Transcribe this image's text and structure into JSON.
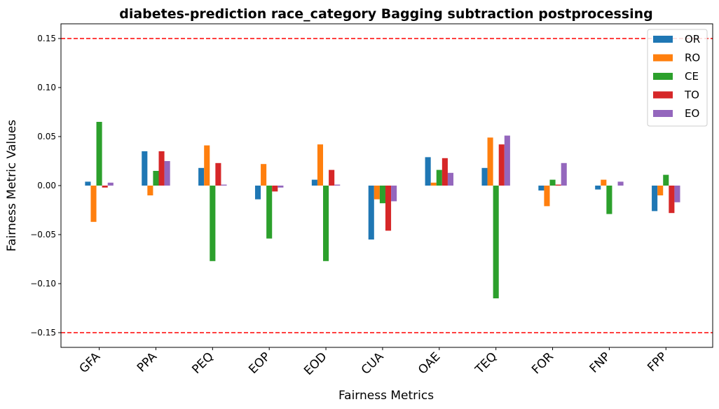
{
  "chart_data": {
    "type": "bar",
    "title": "diabetes-prediction race_category Bagging subtraction postprocessing",
    "xlabel": "Fairness Metrics",
    "ylabel": "Fairness Metric Values",
    "categories": [
      "GFA",
      "PPA",
      "PEQ",
      "EOP",
      "EOD",
      "CUA",
      "OAE",
      "TEQ",
      "FOR",
      "FNP",
      "FPP"
    ],
    "series": [
      {
        "name": "OR",
        "color": "#1f77b4",
        "values": [
          0.004,
          0.035,
          0.018,
          -0.014,
          0.006,
          -0.055,
          0.029,
          0.018,
          -0.005,
          -0.004,
          -0.026
        ]
      },
      {
        "name": "RO",
        "color": "#ff7f0e",
        "values": [
          -0.037,
          -0.01,
          0.041,
          0.022,
          0.042,
          -0.014,
          0.003,
          0.049,
          -0.021,
          0.006,
          -0.01
        ]
      },
      {
        "name": "CE",
        "color": "#2ca02c",
        "values": [
          0.065,
          0.015,
          -0.077,
          -0.054,
          -0.077,
          -0.018,
          0.016,
          -0.115,
          0.006,
          -0.029,
          0.011
        ]
      },
      {
        "name": "TO",
        "color": "#d62728",
        "values": [
          -0.002,
          0.035,
          0.023,
          -0.006,
          0.016,
          -0.046,
          0.028,
          0.042,
          0.001,
          0.0,
          -0.028
        ]
      },
      {
        "name": "EO",
        "color": "#9467bd",
        "values": [
          0.003,
          0.025,
          0.001,
          -0.002,
          0.001,
          -0.016,
          0.013,
          0.051,
          0.023,
          0.004,
          -0.017
        ]
      }
    ],
    "ylim": [
      -0.165,
      0.165
    ],
    "yticks": [
      -0.15,
      -0.1,
      -0.05,
      0.0,
      0.05,
      0.1,
      0.15
    ],
    "ytick_labels": [
      "−0.15",
      "−0.10",
      "−0.05",
      "0.00",
      "0.05",
      "0.10",
      "0.15"
    ],
    "reference_lines": [
      {
        "y": 0.15,
        "color": "#ff0000",
        "style": "dashed"
      },
      {
        "y": -0.15,
        "color": "#ff0000",
        "style": "dashed"
      }
    ],
    "grid": false,
    "legend_position": "top-right"
  }
}
